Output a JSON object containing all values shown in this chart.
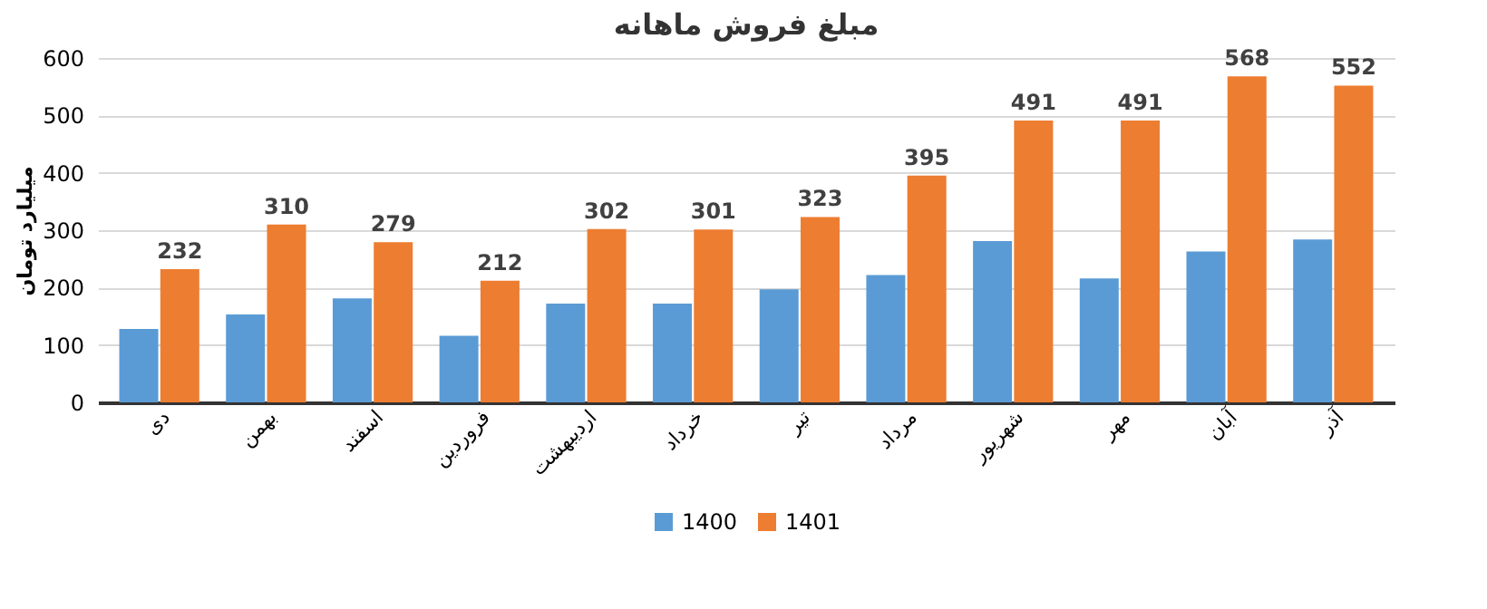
{
  "chart_data": {
    "type": "bar",
    "title": "مبلغ فروش ماهانه",
    "ylabel": "میلیارد تومان",
    "categories": [
      "دی",
      "بهمن",
      "اسفند",
      "فروردین",
      "اردیبهشت",
      "خرداد",
      "تیر",
      "مرداد",
      "شهریور",
      "مهر",
      "آبان",
      "آذر"
    ],
    "series": [
      {
        "name": "1400",
        "color": "#5b9bd5",
        "values": [
          128,
          153,
          181,
          116,
          172,
          172,
          197,
          222,
          281,
          216,
          263,
          284
        ]
      },
      {
        "name": "1401",
        "color": "#ed7d31",
        "values": [
          232,
          310,
          279,
          212,
          302,
          301,
          323,
          395,
          491,
          491,
          568,
          552
        ],
        "value_labels": [
          "232",
          "310",
          "279",
          "212",
          "302",
          "301",
          "323",
          "395",
          "491",
          "491",
          "568",
          "552"
        ]
      }
    ],
    "ylim": [
      0,
      600
    ],
    "yticks": [
      0,
      100,
      200,
      300,
      400,
      500,
      600
    ],
    "grid": "y",
    "legend": "bottom"
  }
}
